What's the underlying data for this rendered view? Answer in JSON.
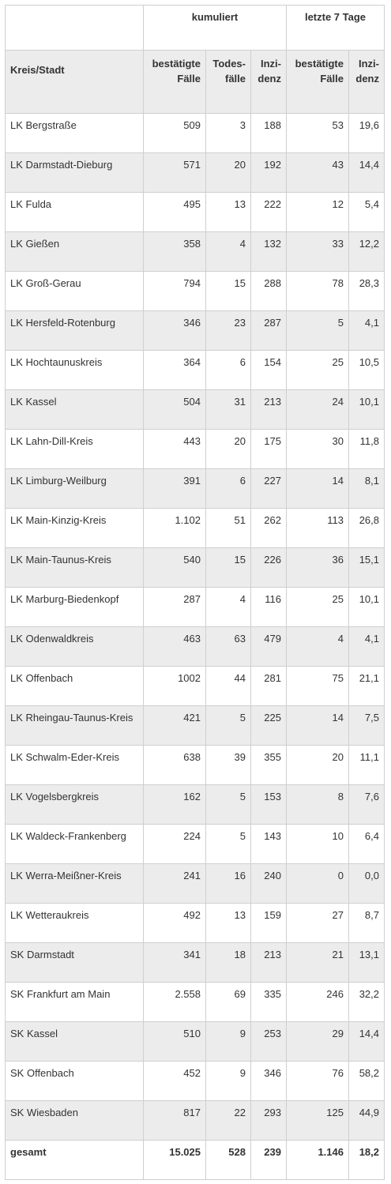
{
  "header": {
    "group_cumulative": "kumuliert",
    "group_last7": "letzte 7 Tage",
    "col_region": "Kreis/Stadt",
    "col_cases_cum": "bestätigte Fälle",
    "col_deaths_cum": "Todes-fälle",
    "col_incidence_cum": "Inzi-denz",
    "col_cases_7d": "bestätigte Fälle",
    "col_incidence_7d": "Inzi-denz"
  },
  "rows": [
    {
      "region": "LK Bergstraße",
      "cases": "509",
      "deaths": "3",
      "incidence": "188",
      "cases7": "53",
      "incidence7": "19,6"
    },
    {
      "region": "LK Darmstadt-Dieburg",
      "cases": "571",
      "deaths": "20",
      "incidence": "192",
      "cases7": "43",
      "incidence7": "14,4"
    },
    {
      "region": "LK Fulda",
      "cases": "495",
      "deaths": "13",
      "incidence": "222",
      "cases7": "12",
      "incidence7": "5,4"
    },
    {
      "region": "LK Gießen",
      "cases": "358",
      "deaths": "4",
      "incidence": "132",
      "cases7": "33",
      "incidence7": "12,2"
    },
    {
      "region": "LK Groß-Gerau",
      "cases": "794",
      "deaths": "15",
      "incidence": "288",
      "cases7": "78",
      "incidence7": "28,3"
    },
    {
      "region": "LK Hersfeld-Rotenburg",
      "cases": "346",
      "deaths": "23",
      "incidence": "287",
      "cases7": "5",
      "incidence7": "4,1"
    },
    {
      "region": "LK Hochtaunuskreis",
      "cases": "364",
      "deaths": "6",
      "incidence": "154",
      "cases7": "25",
      "incidence7": "10,5"
    },
    {
      "region": "LK Kassel",
      "cases": "504",
      "deaths": "31",
      "incidence": "213",
      "cases7": "24",
      "incidence7": "10,1"
    },
    {
      "region": "LK Lahn-Dill-Kreis",
      "cases": "443",
      "deaths": "20",
      "incidence": "175",
      "cases7": "30",
      "incidence7": "11,8"
    },
    {
      "region": "LK Limburg-Weilburg",
      "cases": "391",
      "deaths": "6",
      "incidence": "227",
      "cases7": "14",
      "incidence7": "8,1"
    },
    {
      "region": "LK Main-Kinzig-Kreis",
      "cases": "1.102",
      "deaths": "51",
      "incidence": "262",
      "cases7": "113",
      "incidence7": "26,8"
    },
    {
      "region": "LK Main-Taunus-Kreis",
      "cases": "540",
      "deaths": "15",
      "incidence": "226",
      "cases7": "36",
      "incidence7": "15,1"
    },
    {
      "region": "LK Marburg-Biedenkopf",
      "cases": "287",
      "deaths": "4",
      "incidence": "116",
      "cases7": "25",
      "incidence7": "10,1"
    },
    {
      "region": "LK Odenwaldkreis",
      "cases": "463",
      "deaths": "63",
      "incidence": "479",
      "cases7": "4",
      "incidence7": "4,1"
    },
    {
      "region": "LK Offenbach",
      "cases": "1002",
      "deaths": "44",
      "incidence": "281",
      "cases7": "75",
      "incidence7": "21,1"
    },
    {
      "region": "LK Rheingau-Taunus-Kreis",
      "cases": "421",
      "deaths": "5",
      "incidence": "225",
      "cases7": "14",
      "incidence7": "7,5"
    },
    {
      "region": "LK Schwalm-Eder-Kreis",
      "cases": "638",
      "deaths": "39",
      "incidence": "355",
      "cases7": "20",
      "incidence7": "11,1"
    },
    {
      "region": "LK Vogelsbergkreis",
      "cases": "162",
      "deaths": "5",
      "incidence": "153",
      "cases7": "8",
      "incidence7": "7,6"
    },
    {
      "region": "LK Waldeck-Frankenberg",
      "cases": "224",
      "deaths": "5",
      "incidence": "143",
      "cases7": "10",
      "incidence7": "6,4"
    },
    {
      "region": "LK Werra-Meißner-Kreis",
      "cases": "241",
      "deaths": "16",
      "incidence": "240",
      "cases7": "0",
      "incidence7": "0,0"
    },
    {
      "region": "LK Wetteraukreis",
      "cases": "492",
      "deaths": "13",
      "incidence": "159",
      "cases7": "27",
      "incidence7": "8,7"
    },
    {
      "region": "SK Darmstadt",
      "cases": "341",
      "deaths": "18",
      "incidence": "213",
      "cases7": "21",
      "incidence7": "13,1"
    },
    {
      "region": "SK Frankfurt am Main",
      "cases": "2.558",
      "deaths": "69",
      "incidence": "335",
      "cases7": "246",
      "incidence7": "32,2"
    },
    {
      "region": "SK Kassel",
      "cases": "510",
      "deaths": "9",
      "incidence": "253",
      "cases7": "29",
      "incidence7": "14,4"
    },
    {
      "region": "SK Offenbach",
      "cases": "452",
      "deaths": "9",
      "incidence": "346",
      "cases7": "76",
      "incidence7": "58,2"
    },
    {
      "region": "SK Wiesbaden",
      "cases": "817",
      "deaths": "22",
      "incidence": "293",
      "cases7": "125",
      "incidence7": "44,9"
    }
  ],
  "total": {
    "region": "gesamt",
    "cases": "15.025",
    "deaths": "528",
    "incidence": "239",
    "cases7": "1.146",
    "incidence7": "18,2"
  }
}
